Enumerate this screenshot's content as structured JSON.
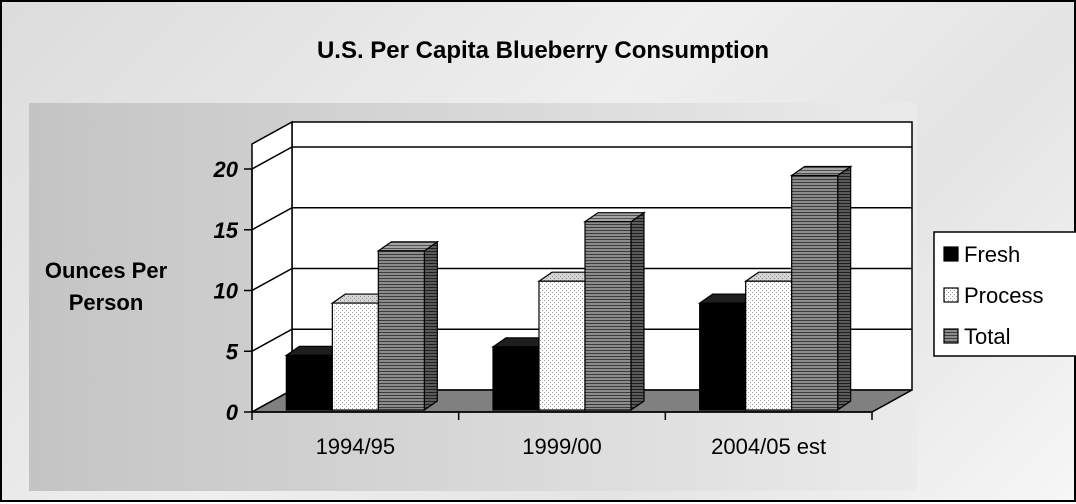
{
  "chart_data": {
    "type": "bar",
    "title": "U.S. Per Capita Blueberry Consumption",
    "ylabel": "Ounces Per Person",
    "xlabel": "",
    "categories": [
      "1994/95",
      "1999/00",
      "2004/05 est"
    ],
    "series": [
      {
        "name": "Fresh",
        "values": [
          4.5,
          5.2,
          8.8
        ],
        "color": "#000000",
        "fill": "solid"
      },
      {
        "name": "Process",
        "values": [
          8.8,
          10.6,
          10.6
        ],
        "color": "#ffffff",
        "fill": "dots"
      },
      {
        "name": "Total",
        "values": [
          13.1,
          15.5,
          19.3
        ],
        "color": "#808080",
        "fill": "hlines"
      }
    ],
    "ylim": [
      0,
      20
    ],
    "yticks": [
      0,
      5,
      10,
      15,
      20
    ],
    "grid": true,
    "legend": "right",
    "style": "3d-clustered-column",
    "colors": {
      "floor": "#808080",
      "plot_area": "#ffffff",
      "panel": "#c0c0c0"
    }
  }
}
